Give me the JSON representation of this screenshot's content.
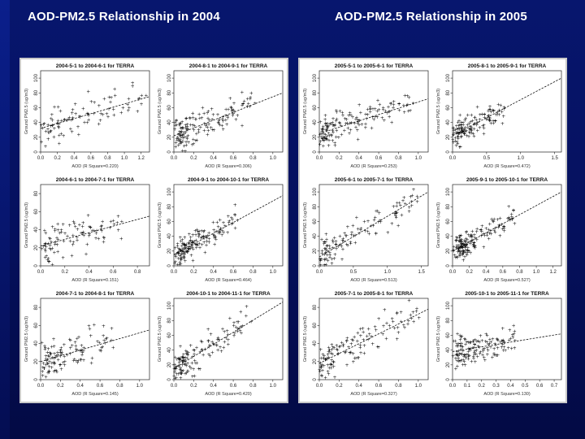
{
  "slide": {
    "title_left": "AOD-PM2.5 Relationship in 2004",
    "title_right": "AOD-PM2.5 Relationship in 2005"
  },
  "chart_data": [
    {
      "type": "scatter",
      "year": "2004",
      "title": "2004-5-1 to 2004-6-1 for TERRA",
      "xlabel": "AOD (R Square=0.220)",
      "ylabel": "Ground PM2.5 (ug/m3)",
      "x_ticks": [
        "0.0",
        "0.2",
        "0.4",
        "0.6",
        "0.8",
        "1.0",
        "1.2"
      ],
      "y_ticks": [
        "0",
        "20",
        "40",
        "60",
        "80",
        "100"
      ],
      "xlim": [
        0,
        1.3
      ],
      "ylim": [
        0,
        110
      ],
      "trend": [
        [
          0,
          32
        ],
        [
          1.3,
          75
        ]
      ],
      "seed": 11,
      "n": 95,
      "spread": [
        0.9,
        0.4
      ],
      "noise": 20
    },
    {
      "type": "scatter",
      "year": "2004",
      "title": "2004-8-1 to 2004-9-1 for TERRA",
      "xlabel": "AOD (R Square=0.306)",
      "ylabel": "Ground PM2.5 (ug/m3)",
      "x_ticks": [
        "0.0",
        "0.2",
        "0.4",
        "0.6",
        "0.8",
        "1.0"
      ],
      "y_ticks": [
        "0",
        "20",
        "40",
        "60",
        "80",
        "100"
      ],
      "xlim": [
        0,
        1.1
      ],
      "ylim": [
        0,
        110
      ],
      "trend": [
        [
          0,
          22
        ],
        [
          1.1,
          80
        ]
      ],
      "seed": 23,
      "n": 150,
      "spread": [
        0.7,
        0.45
      ],
      "noise": 18
    },
    {
      "type": "scatter",
      "year": "2004",
      "title": "2004-6-1 to 2004-7-1 for TERRA",
      "xlabel": "AOD (R Square=0.151)",
      "ylabel": "Ground PM2.5 (ug/m3)",
      "x_ticks": [
        "0.0",
        "0.2",
        "0.4",
        "0.6",
        "0.8"
      ],
      "y_ticks": [
        "0",
        "20",
        "40",
        "60",
        "80"
      ],
      "xlim": [
        0,
        0.9
      ],
      "ylim": [
        0,
        90
      ],
      "trend": [
        [
          0,
          22
        ],
        [
          0.9,
          55
        ]
      ],
      "seed": 37,
      "n": 95,
      "spread": [
        0.7,
        0.4
      ],
      "noise": 16
    },
    {
      "type": "scatter",
      "year": "2004",
      "title": "2004-9-1 to 2004-10-1 for TERRA",
      "xlabel": "AOD (R Square=0.464)",
      "ylabel": "Ground PM2.5 (ug/m3)",
      "x_ticks": [
        "0.0",
        "0.2",
        "0.4",
        "0.6",
        "0.8",
        "1.0"
      ],
      "y_ticks": [
        "0",
        "20",
        "40",
        "60",
        "80",
        "100"
      ],
      "xlim": [
        0,
        1.1
      ],
      "ylim": [
        0,
        110
      ],
      "trend": [
        [
          0,
          15
        ],
        [
          1.1,
          95
        ]
      ],
      "seed": 41,
      "n": 160,
      "spread": [
        0.55,
        0.5
      ],
      "noise": 14
    },
    {
      "type": "scatter",
      "year": "2004",
      "title": "2004-7-1 to 2004-8-1 for TERRA",
      "xlabel": "AOD (R Square=0.145)",
      "ylabel": "Ground PM2.5 (ug/m3)",
      "x_ticks": [
        "0.0",
        "0.2",
        "0.4",
        "0.6",
        "0.8",
        "1.0"
      ],
      "y_ticks": [
        "0",
        "20",
        "40",
        "60",
        "80"
      ],
      "xlim": [
        0,
        1.1
      ],
      "ylim": [
        0,
        90
      ],
      "trend": [
        [
          0,
          20
        ],
        [
          1.1,
          55
        ]
      ],
      "seed": 53,
      "n": 115,
      "spread": [
        0.65,
        0.45
      ],
      "noise": 16
    },
    {
      "type": "scatter",
      "year": "2004",
      "title": "2004-10-1 to 2004-11-1 for TERRA",
      "xlabel": "AOD (R Square=0.420)",
      "ylabel": "Ground PM2.5 (ug/m3)",
      "x_ticks": [
        "0.0",
        "0.2",
        "0.4",
        "0.6",
        "0.8",
        "1.0"
      ],
      "y_ticks": [
        "0",
        "20",
        "40",
        "60",
        "80",
        "100"
      ],
      "xlim": [
        0,
        1.1
      ],
      "ylim": [
        0,
        110
      ],
      "trend": [
        [
          0,
          15
        ],
        [
          1.1,
          105
        ]
      ],
      "seed": 67,
      "n": 135,
      "spread": [
        0.65,
        0.5
      ],
      "noise": 18
    },
    {
      "type": "scatter",
      "year": "2005",
      "title": "2005-5-1 to 2005-6-1 for TERRA",
      "xlabel": "AOD (R Square=0.253)",
      "ylabel": "Ground PM2.5 (ug/m3)",
      "x_ticks": [
        "0.0",
        "0.2",
        "0.4",
        "0.6",
        "0.8",
        "1.0"
      ],
      "y_ticks": [
        "0",
        "20",
        "40",
        "60",
        "80",
        "100"
      ],
      "xlim": [
        0,
        1.1
      ],
      "ylim": [
        0,
        110
      ],
      "trend": [
        [
          0,
          25
        ],
        [
          1.1,
          72
        ]
      ],
      "seed": 71,
      "n": 150,
      "spread": [
        0.8,
        0.45
      ],
      "noise": 18
    },
    {
      "type": "scatter",
      "year": "2005",
      "title": "2005-8-1 to 2005-9-1 for TERRA",
      "xlabel": "AOD (R Square=0.472)",
      "ylabel": "Ground PM2.5 (ug/m3)",
      "x_ticks": [
        "0.0",
        "0.5",
        "1.0",
        "1.5"
      ],
      "y_ticks": [
        "0",
        "20",
        "40",
        "60",
        "80",
        "100"
      ],
      "xlim": [
        0,
        1.6
      ],
      "ylim": [
        0,
        110
      ],
      "trend": [
        [
          0,
          22
        ],
        [
          1.6,
          100
        ]
      ],
      "seed": 83,
      "n": 140,
      "spread": [
        0.45,
        0.5
      ],
      "noise": 14
    },
    {
      "type": "scatter",
      "year": "2005",
      "title": "2005-6-1 to 2005-7-1 for TERRA",
      "xlabel": "AOD (R Square=0.513)",
      "ylabel": "Ground PM2.5 (ug/m3)",
      "x_ticks": [
        "0.0",
        "0.5",
        "1.0",
        "1.5"
      ],
      "y_ticks": [
        "0",
        "20",
        "40",
        "60",
        "80",
        "100"
      ],
      "xlim": [
        0,
        1.6
      ],
      "ylim": [
        0,
        110
      ],
      "trend": [
        [
          0,
          12
        ],
        [
          1.6,
          100
        ]
      ],
      "seed": 97,
      "n": 120,
      "spread": [
        0.85,
        0.55
      ],
      "noise": 16
    },
    {
      "type": "scatter",
      "year": "2005",
      "title": "2005-9-1 to 2005-10-1 for TERRA",
      "xlabel": "AOD (R Square=0.527)",
      "ylabel": "Ground PM2.5 (ug/m3)",
      "x_ticks": [
        "0.0",
        "0.2",
        "0.4",
        "0.6",
        "0.8",
        "1.0",
        "1.2"
      ],
      "y_ticks": [
        "0",
        "20",
        "40",
        "60",
        "80",
        "100"
      ],
      "xlim": [
        0,
        1.3
      ],
      "ylim": [
        0,
        110
      ],
      "trend": [
        [
          0,
          20
        ],
        [
          1.3,
          100
        ]
      ],
      "seed": 101,
      "n": 160,
      "spread": [
        0.55,
        0.5
      ],
      "noise": 13
    },
    {
      "type": "scatter",
      "year": "2005",
      "title": "2005-7-1 to 2005-8-1 for TERRA",
      "xlabel": "AOD (R Square=0.327)",
      "ylabel": "Ground PM2.5 (ug/m3)",
      "x_ticks": [
        "0.0",
        "0.2",
        "0.4",
        "0.6",
        "0.8",
        "1.0"
      ],
      "y_ticks": [
        "0",
        "20",
        "40",
        "60",
        "80"
      ],
      "xlim": [
        0,
        1.1
      ],
      "ylim": [
        0,
        90
      ],
      "trend": [
        [
          0,
          18
        ],
        [
          1.1,
          78
        ]
      ],
      "seed": 113,
      "n": 130,
      "spread": [
        0.85,
        0.5
      ],
      "noise": 16
    },
    {
      "type": "scatter",
      "year": "2005",
      "title": "2005-10-1 to 2005-11-1 for TERRA",
      "xlabel": "AOD (R Square=0.130)",
      "ylabel": "Ground PM2.5 (ug/m3)",
      "x_ticks": [
        "0.0",
        "0.1",
        "0.2",
        "0.3",
        "0.4",
        "0.5",
        "0.6",
        "0.7"
      ],
      "y_ticks": [
        "0",
        "20",
        "40",
        "60",
        "80",
        "100"
      ],
      "xlim": [
        0,
        0.75
      ],
      "ylim": [
        0,
        110
      ],
      "trend": [
        [
          0,
          38
        ],
        [
          0.75,
          62
        ]
      ],
      "seed": 127,
      "n": 150,
      "spread": [
        0.55,
        0.5
      ],
      "noise": 18
    }
  ]
}
